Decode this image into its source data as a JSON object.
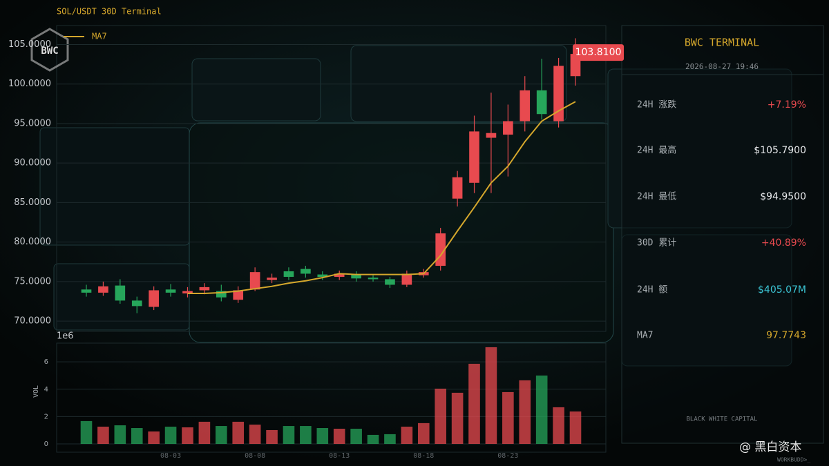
{
  "chart_data": [
    {
      "type": "candlestick",
      "title": "SOL/USDT  30D Terminal",
      "categories": [
        null,
        null,
        null,
        null,
        null,
        "08-03",
        null,
        null,
        null,
        null,
        "08-08",
        null,
        null,
        null,
        null,
        "08-13",
        null,
        null,
        null,
        null,
        "08-18",
        null,
        null,
        null,
        null,
        "08-23",
        null,
        null,
        null,
        null
      ],
      "open": [
        74.0,
        73.6,
        74.5,
        72.6,
        71.8,
        74.0,
        73.5,
        73.9,
        73.8,
        72.7,
        74.0,
        75.2,
        76.3,
        76.6,
        75.9,
        75.6,
        75.9,
        75.5,
        75.3,
        74.6,
        75.8,
        77.0,
        85.5,
        87.5,
        93.2,
        93.6,
        95.3,
        99.2,
        95.3,
        101.0
      ],
      "high": [
        74.6,
        75.0,
        75.3,
        73.1,
        74.4,
        74.7,
        74.3,
        74.8,
        74.6,
        74.4,
        76.8,
        76.0,
        76.8,
        77.0,
        76.3,
        76.4,
        76.3,
        75.8,
        75.6,
        76.4,
        76.6,
        81.8,
        89.0,
        96.0,
        98.9,
        97.4,
        101.0,
        103.2,
        103.3,
        105.79
      ],
      "low": [
        73.1,
        73.2,
        72.2,
        71.0,
        71.4,
        73.1,
        73.0,
        73.4,
        72.5,
        72.3,
        73.8,
        74.8,
        75.2,
        75.5,
        75.2,
        75.2,
        75.0,
        75.0,
        74.2,
        74.3,
        75.5,
        76.4,
        84.5,
        86.2,
        86.2,
        88.3,
        94.0,
        95.5,
        94.5,
        99.8
      ],
      "close": [
        73.6,
        74.4,
        72.6,
        71.9,
        73.9,
        73.6,
        73.8,
        74.3,
        73.0,
        73.9,
        76.2,
        75.5,
        75.6,
        76.0,
        75.6,
        76.0,
        75.4,
        75.3,
        74.6,
        76.0,
        76.2,
        81.1,
        88.2,
        94.0,
        93.8,
        95.3,
        99.2,
        96.2,
        102.3,
        103.81
      ],
      "up_color": "#e84a4f",
      "down_color": "#26a65b",
      "series": [
        {
          "name": "MA7",
          "color": "#d4a72c",
          "values": [
            null,
            null,
            null,
            null,
            null,
            null,
            73.5,
            73.5,
            73.6,
            73.8,
            74.1,
            74.4,
            74.8,
            75.1,
            75.5,
            76.0,
            75.9,
            75.9,
            75.9,
            75.9,
            76.0,
            78.3,
            81.4,
            84.4,
            87.5,
            89.6,
            92.7,
            95.3,
            96.6,
            97.77
          ]
        }
      ],
      "price_tag": "103.8100",
      "ylim": [
        68.7,
        107.4
      ],
      "yticks": [
        {
          "value": 70,
          "label": "70.0000"
        },
        {
          "value": 75,
          "label": "75.0000"
        },
        {
          "value": 80,
          "label": "80.0000"
        },
        {
          "value": 85,
          "label": "85.0000"
        },
        {
          "value": 90,
          "label": "90.0000"
        },
        {
          "value": 95,
          "label": "95.0000"
        },
        {
          "value": 100,
          "label": "100.0000"
        },
        {
          "value": 105,
          "label": "105.0000"
        }
      ],
      "grid": true,
      "legend": "upper left"
    },
    {
      "type": "bar",
      "y_label": "VOL",
      "offset_label": "1e6",
      "values": [
        1.67,
        1.26,
        1.36,
        1.16,
        0.91,
        1.26,
        1.21,
        1.62,
        1.31,
        1.62,
        1.41,
        1.01,
        1.31,
        1.31,
        1.16,
        1.11,
        1.11,
        0.66,
        0.71,
        1.26,
        1.52,
        4.04,
        3.74,
        5.86,
        7.07,
        3.79,
        4.65,
        5.0,
        2.68,
        2.37
      ],
      "ylim": [
        0,
        7.37
      ],
      "yticks": [
        0,
        2,
        4,
        6
      ]
    }
  ],
  "logo": "BWC",
  "panel": {
    "title": "BWC TERMINAL",
    "timestamp": "2026-08-27 19:46",
    "rows": [
      [
        "24H 涨跌",
        "+7.19%"
      ],
      [
        "24H 最高",
        "$105.7900"
      ],
      [
        "24H 最低",
        "$94.9500"
      ],
      [
        "30D 累计",
        "+40.89%"
      ],
      [
        "24H 额",
        "$405.07M"
      ],
      [
        "MA7",
        "97.7743"
      ]
    ],
    "footer": "BLACK WHITE CAPITAL"
  },
  "watermark": {
    "brand": "@ 黑白资本",
    "sub": "WORKBUDD>_"
  }
}
